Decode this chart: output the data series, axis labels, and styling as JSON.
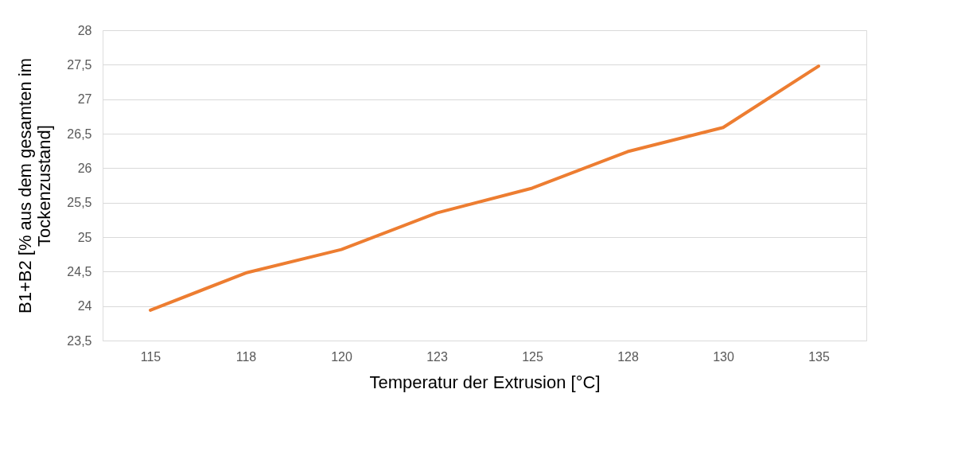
{
  "chart_data": {
    "type": "line",
    "xlabel": "Temperatur der Extrusion [°C]",
    "ylabel": "B1+B2 [% aus dem gesamten im\nTockenzustand]",
    "categories": [
      "115",
      "118",
      "120",
      "123",
      "125",
      "128",
      "130",
      "135"
    ],
    "series": [
      {
        "color": "#ed7d31",
        "values": [
          23.94,
          24.48,
          24.82,
          25.35,
          25.71,
          26.24,
          26.59,
          27.48
        ]
      }
    ],
    "ylim": [
      23.5,
      28
    ],
    "yticks": [
      {
        "value": 23.5,
        "label": "23,5"
      },
      24,
      {
        "value": 24.5,
        "label": "24,5"
      },
      25,
      {
        "value": 25.5,
        "label": "25,5"
      },
      26,
      {
        "value": 26.5,
        "label": "26,5"
      },
      27,
      {
        "value": 27.5,
        "label": "27,5"
      },
      28
    ],
    "grid": "y",
    "marker": "none",
    "line_style": "solid"
  }
}
